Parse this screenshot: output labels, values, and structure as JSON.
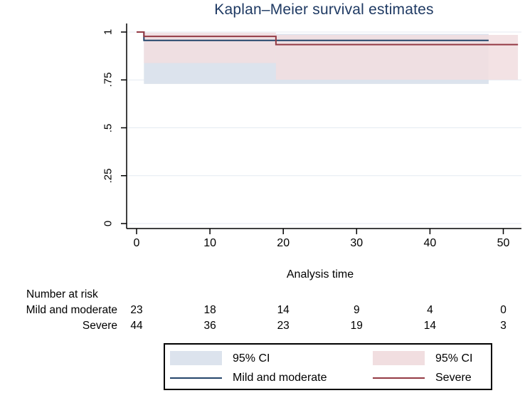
{
  "chart_data": {
    "type": "line",
    "subtype": "kaplan-meier-step",
    "title": "Kaplan–Meier survival estimates",
    "xlabel": "Analysis time",
    "ylabel": "",
    "xlim": [
      -1.4,
      52.6
    ],
    "ylim": [
      -0.026,
      1.045
    ],
    "x_ticks": [
      0,
      10,
      20,
      30,
      40,
      50
    ],
    "y_ticks": [
      0,
      0.25,
      0.5,
      0.75,
      1
    ],
    "y_tick_labels": [
      "0",
      ".25",
      ".5",
      ".75",
      "1"
    ],
    "grid": true,
    "grid_color": "#e4eaf2",
    "axis_color": "#000000",
    "title_color": "#1f3a63",
    "series": [
      {
        "name": "Mild and moderate",
        "color": "#24456b",
        "steps": [
          [
            0,
            1
          ],
          [
            1,
            1
          ],
          [
            1,
            0.9565
          ],
          [
            48,
            0.9565
          ]
        ]
      },
      {
        "name": "Severe",
        "color": "#943a44",
        "steps": [
          [
            0,
            1
          ],
          [
            1,
            1
          ],
          [
            1,
            0.9773
          ],
          [
            19,
            0.9773
          ],
          [
            19,
            0.9346
          ],
          [
            52,
            0.9346
          ]
        ]
      }
    ],
    "bands": [
      {
        "name": "95% CI Mild and moderate",
        "color": "#dce3ed",
        "opacity": 1,
        "segments": [
          {
            "x0": 1,
            "x1": 48,
            "upper": 0.99,
            "lower": 0.729
          }
        ]
      },
      {
        "name": "95% CI Severe",
        "color": "#f1dee0",
        "opacity": 0.88,
        "segments": [
          {
            "x0": 1,
            "x1": 19,
            "upper": 0.997,
            "lower": 0.838
          },
          {
            "x0": 19,
            "x1": 52,
            "upper": 0.985,
            "lower": 0.751
          }
        ]
      }
    ],
    "risk_table": {
      "header": "Number at risk",
      "time_points": [
        0,
        10,
        20,
        30,
        40,
        50
      ],
      "rows": [
        {
          "label": "Mild and moderate",
          "values": [
            23,
            18,
            14,
            9,
            4,
            0
          ]
        },
        {
          "label": "Severe",
          "values": [
            44,
            36,
            23,
            19,
            14,
            3
          ]
        }
      ]
    },
    "legend": {
      "items": [
        {
          "type": "band",
          "color": "#dce3ed",
          "label": "95% CI"
        },
        {
          "type": "band",
          "color": "#f1dee0",
          "label": "95% CI"
        },
        {
          "type": "line",
          "color": "#24456b",
          "label": "Mild and moderate"
        },
        {
          "type": "line",
          "color": "#943a44",
          "label": "Severe"
        }
      ]
    }
  }
}
